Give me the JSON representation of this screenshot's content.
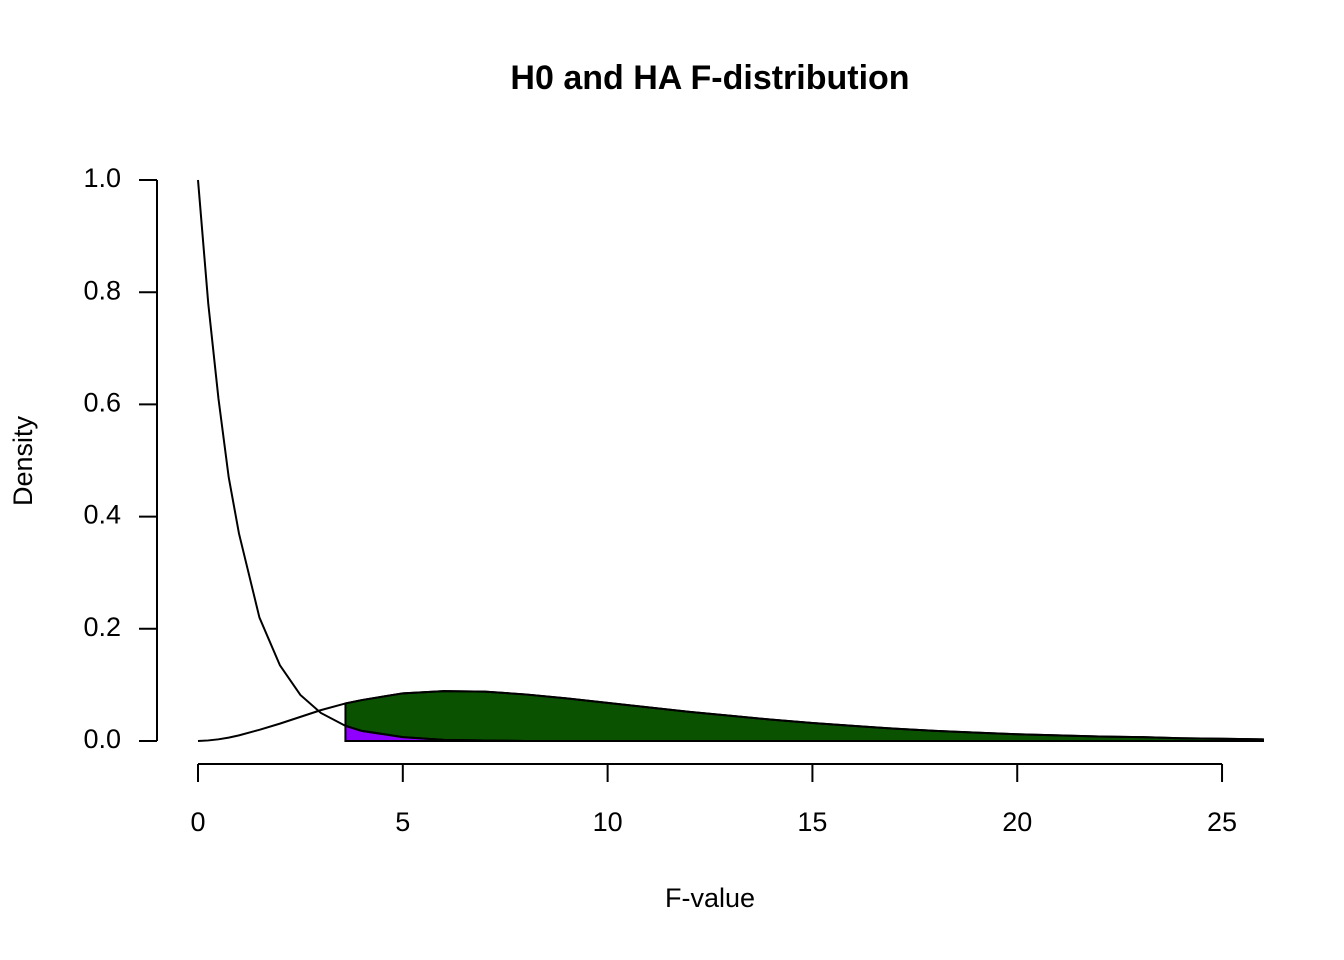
{
  "chart_data": {
    "type": "line",
    "title": "H0 and HA F-distribution",
    "x_label": "F-value",
    "y_label": "Density",
    "x": [
      0,
      0.25,
      0.5,
      0.75,
      1,
      1.5,
      2,
      2.5,
      3,
      3.6,
      4,
      5,
      6,
      7,
      8,
      9,
      10,
      11,
      12,
      13,
      14,
      15,
      16,
      17,
      18,
      19,
      20,
      21,
      22,
      23,
      24,
      25,
      26
    ],
    "series": [
      {
        "color": "#0b5200",
        "values": [
          0,
          0.001,
          0.003,
          0.006,
          0.01,
          0.02,
          0.031,
          0.043,
          0.055,
          0.067,
          0.073,
          0.085,
          0.089,
          0.088,
          0.083,
          0.076,
          0.068,
          0.06,
          0.052,
          0.045,
          0.038,
          0.032,
          0.027,
          0.022,
          0.018,
          0.015,
          0.012,
          0.01,
          0.008,
          0.007,
          0.005,
          0.004,
          0.003
        ]
      },
      {
        "color": "#8f00ff",
        "values": [
          1.0,
          0.78,
          0.61,
          0.47,
          0.37,
          0.22,
          0.135,
          0.082,
          0.05,
          0.027,
          0.018,
          0.007,
          0.002,
          0.001,
          0,
          0,
          0,
          0,
          0,
          0,
          0,
          0,
          0,
          0,
          0,
          0,
          0,
          0,
          0,
          0,
          0,
          0,
          0
        ]
      }
    ],
    "shade_from": 3.6,
    "xlim": [
      0,
      26
    ],
    "ylim": [
      0,
      1
    ],
    "xticks": [
      0,
      5,
      10,
      15,
      20,
      25
    ],
    "yticks": [
      {
        "value": 0,
        "label": "0.0"
      },
      0.2,
      0.4,
      0.6,
      0.8,
      {
        "value": 1,
        "label": "1.0"
      }
    ]
  }
}
